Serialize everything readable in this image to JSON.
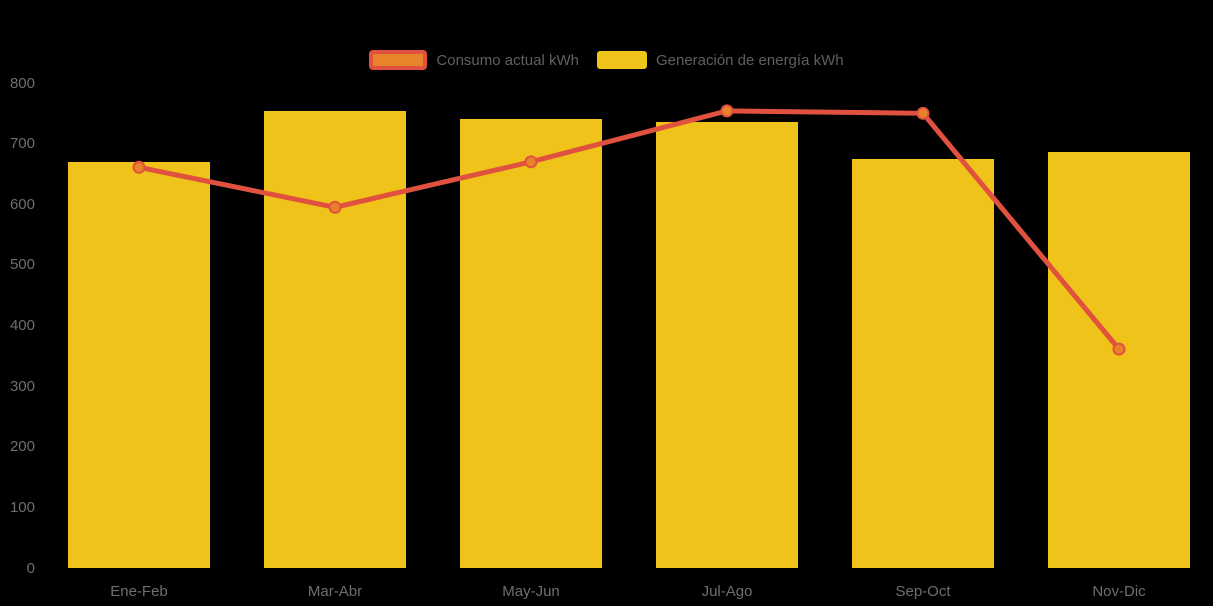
{
  "chart_data": {
    "type": "combo",
    "title": "",
    "xlabel": "",
    "ylabel": "",
    "categories": [
      "Ene-Feb",
      "Mar-Abr",
      "May-Jun",
      "Jul-Ago",
      "Sep-Oct",
      "Nov-Dic"
    ],
    "series": [
      {
        "name": "Consumo actual kWh",
        "type": "line",
        "color": "#E0513F",
        "marker_color": "#E8832B",
        "values": [
          661,
          595,
          670,
          754,
          750,
          361
        ]
      },
      {
        "name": "Generación de energía kWh",
        "type": "bar",
        "color": "#EFC319",
        "values": [
          670,
          753,
          741,
          736,
          675,
          686
        ]
      }
    ],
    "ylim": [
      0,
      800
    ],
    "yticks": [
      0,
      100,
      200,
      300,
      400,
      500,
      600,
      700,
      800
    ],
    "grid": false,
    "legend_position": "top-center",
    "background": "#000000",
    "axis_label_color": "#6E6E6E",
    "legend_text_color": "#5F5F5F"
  }
}
